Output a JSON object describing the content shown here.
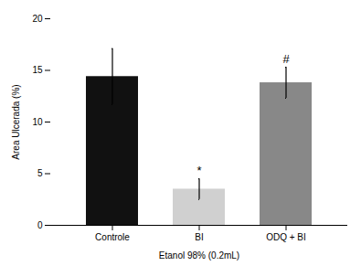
{
  "chart_data": {
    "type": "bar",
    "categories": [
      "Controle",
      "BI",
      "ODQ + BI"
    ],
    "values": [
      14.4,
      3.5,
      13.8
    ],
    "errors": [
      2.7,
      1.0,
      1.5
    ],
    "colors": [
      "#111111",
      "#d0d0d0",
      "#888888"
    ],
    "ylim": [
      0,
      20
    ],
    "yticks": [
      0,
      5,
      10,
      15,
      20
    ],
    "ylabel": "Area Ulcerada (%)",
    "xlabel": "Etanol 98% (0.2mL)",
    "annotations": [
      {
        "category": "BI",
        "text": "*"
      },
      {
        "category": "ODQ + BI",
        "text": "#"
      }
    ]
  }
}
